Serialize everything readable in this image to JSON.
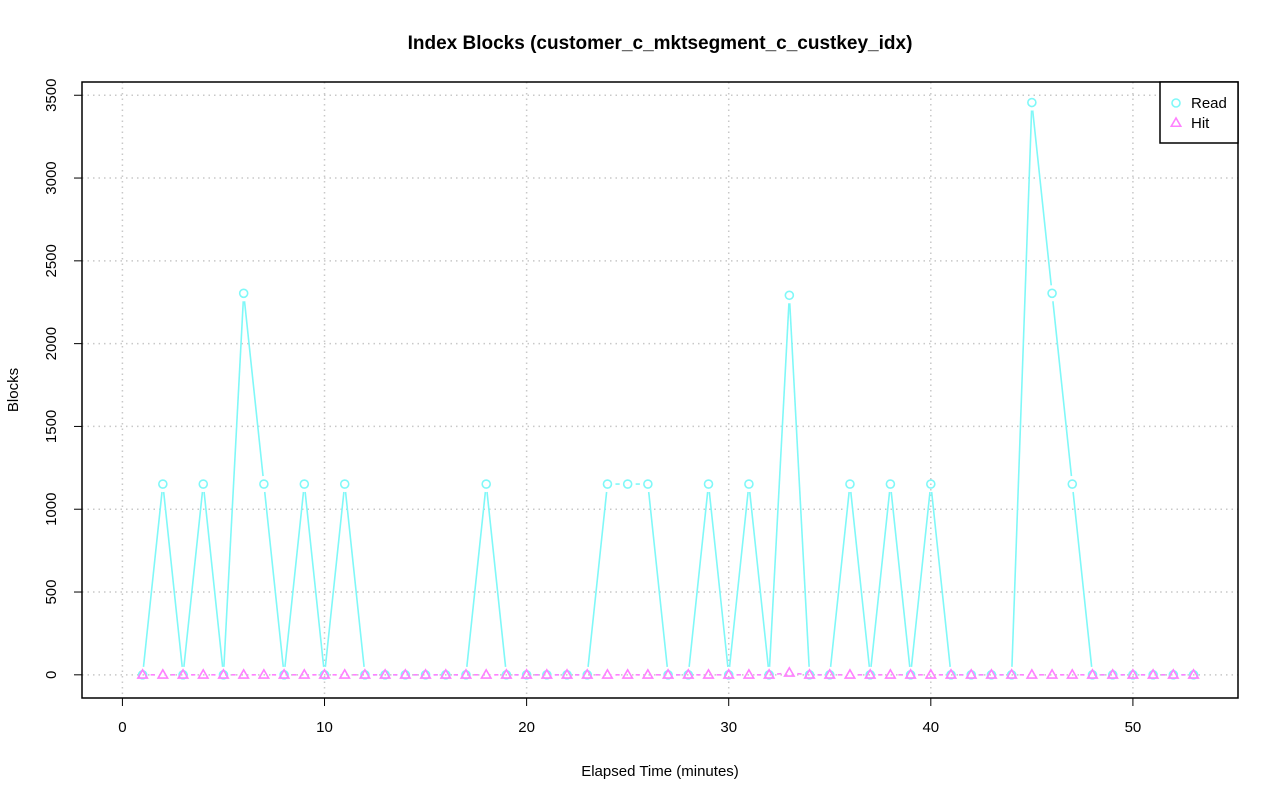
{
  "chart_data": {
    "type": "line",
    "title": "Index Blocks (customer_c_mktsegment_c_custkey_idx)",
    "xlabel": "Elapsed Time (minutes)",
    "ylabel": "Blocks",
    "xlim": [
      -2,
      55.2
    ],
    "ylim": [
      -140,
      3580
    ],
    "x_ticks": [
      0,
      10,
      20,
      30,
      40,
      50
    ],
    "y_ticks": [
      0,
      500,
      1000,
      1500,
      2000,
      2500,
      3000,
      3500
    ],
    "grid": true,
    "legend_position": "top-right",
    "x": [
      1,
      2,
      3,
      4,
      5,
      6,
      7,
      8,
      9,
      10,
      11,
      12,
      13,
      14,
      15,
      16,
      17,
      18,
      19,
      20,
      21,
      22,
      23,
      24,
      25,
      26,
      27,
      28,
      29,
      30,
      31,
      32,
      33,
      34,
      35,
      36,
      37,
      38,
      39,
      40,
      41,
      42,
      43,
      44,
      45,
      46,
      47,
      48,
      49,
      50,
      51,
      52,
      53
    ],
    "series": [
      {
        "name": "Read",
        "color": "#7ff8f8",
        "marker": "circle",
        "values": [
          0,
          1152,
          0,
          1152,
          0,
          2304,
          1152,
          0,
          1152,
          0,
          1152,
          0,
          0,
          0,
          0,
          0,
          0,
          1152,
          0,
          0,
          0,
          0,
          0,
          1152,
          1152,
          1152,
          0,
          0,
          1152,
          0,
          1152,
          0,
          2292,
          0,
          0,
          1152,
          0,
          1152,
          0,
          1152,
          0,
          0,
          0,
          0,
          3456,
          2304,
          1152,
          0,
          0,
          0,
          0,
          0,
          0
        ]
      },
      {
        "name": "Hit",
        "color": "#ff80ff",
        "marker": "triangle",
        "values": [
          0,
          0,
          0,
          0,
          0,
          0,
          0,
          0,
          0,
          0,
          0,
          0,
          0,
          0,
          0,
          0,
          0,
          0,
          0,
          0,
          0,
          0,
          0,
          0,
          0,
          0,
          0,
          0,
          0,
          0,
          0,
          0,
          12,
          0,
          0,
          0,
          0,
          0,
          0,
          0,
          0,
          0,
          0,
          0,
          0,
          0,
          0,
          0,
          0,
          0,
          0,
          0,
          0
        ]
      }
    ]
  }
}
